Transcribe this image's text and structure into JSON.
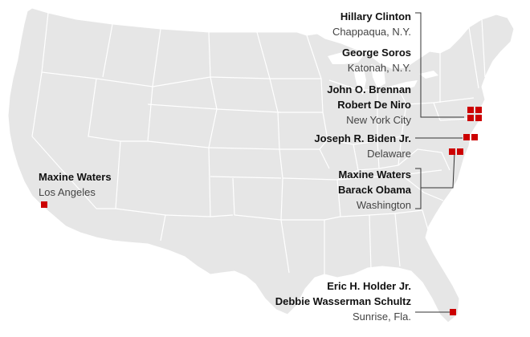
{
  "map": {
    "region": "United States",
    "land_color": "#e8e8e8",
    "border_color": "#ffffff",
    "marker_color": "#cc0000"
  },
  "groups": [
    {
      "id": "chappaqua",
      "names": [
        "Hillary Clinton"
      ],
      "place": "Chappaqua, N.Y."
    },
    {
      "id": "katonah",
      "names": [
        "George Soros"
      ],
      "place": "Katonah, N.Y."
    },
    {
      "id": "nyc",
      "names": [
        "John O. Brennan",
        "Robert De Niro"
      ],
      "place": "New York City"
    },
    {
      "id": "delaware",
      "names": [
        "Joseph R. Biden Jr."
      ],
      "place": "Delaware"
    },
    {
      "id": "washington",
      "names": [
        "Maxine Waters",
        "Barack Obama"
      ],
      "place": "Washington"
    },
    {
      "id": "la",
      "names": [
        "Maxine Waters"
      ],
      "place": "Los Angeles"
    },
    {
      "id": "sunrise",
      "names": [
        "Eric H. Holder Jr.",
        "Debbie Wasserman Schultz"
      ],
      "place": "Sunrise, Fla."
    }
  ]
}
